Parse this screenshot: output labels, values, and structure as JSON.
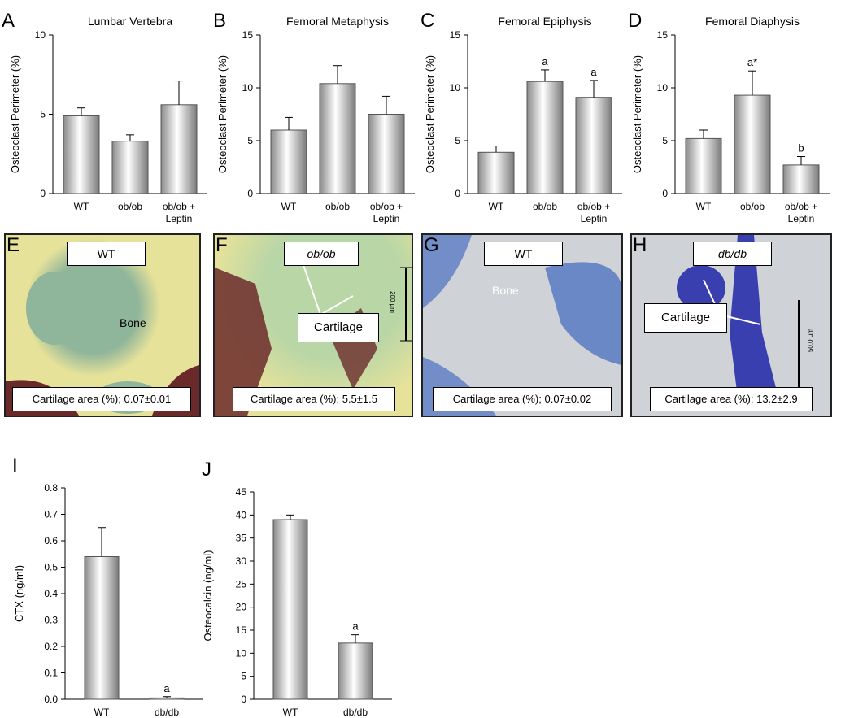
{
  "chart_data": [
    {
      "panel": "A",
      "type": "bar",
      "title": "Lumbar Vertebra",
      "ylabel": "Osteoclast Perimeter (%)",
      "ylim": [
        0,
        10
      ],
      "yticks": [
        0,
        5,
        10
      ],
      "categories": [
        "WT",
        "ob/ob",
        "ob/ob + Leptin"
      ],
      "values": [
        4.9,
        3.3,
        5.6
      ],
      "errors": [
        0.5,
        0.4,
        1.5
      ],
      "annotations": [
        "",
        "",
        ""
      ]
    },
    {
      "panel": "B",
      "type": "bar",
      "title": "Femoral Metaphysis",
      "ylabel": "Osteoclast Perimeter (%)",
      "ylim": [
        0,
        15
      ],
      "yticks": [
        0,
        5,
        10,
        15
      ],
      "categories": [
        "WT",
        "ob/ob",
        "ob/ob + Leptin"
      ],
      "values": [
        6.0,
        10.4,
        7.5
      ],
      "errors": [
        1.2,
        1.7,
        1.7
      ],
      "annotations": [
        "",
        "",
        ""
      ]
    },
    {
      "panel": "C",
      "type": "bar",
      "title": "Femoral Epiphysis",
      "ylabel": "Osteoclast Perimeter (%)",
      "ylim": [
        0,
        15
      ],
      "yticks": [
        0,
        5,
        10,
        15
      ],
      "categories": [
        "WT",
        "ob/ob",
        "ob/ob + Leptin"
      ],
      "values": [
        3.9,
        10.6,
        9.1
      ],
      "errors": [
        0.6,
        1.1,
        1.6
      ],
      "annotations": [
        "",
        "a",
        "a"
      ]
    },
    {
      "panel": "D",
      "type": "bar",
      "title": "Femoral Diaphysis",
      "ylabel": "Osteoclast Perimeter (%)",
      "ylim": [
        0,
        15
      ],
      "yticks": [
        0,
        5,
        10,
        15
      ],
      "categories": [
        "WT",
        "ob/ob",
        "ob/ob + Leptin"
      ],
      "values": [
        5.2,
        9.3,
        2.7
      ],
      "errors": [
        0.8,
        2.3,
        0.8
      ],
      "annotations": [
        "",
        "a*",
        "b"
      ]
    },
    {
      "panel": "I",
      "type": "bar",
      "title": "",
      "ylabel": "CTX (ng/ml)",
      "ylim": [
        0,
        0.8
      ],
      "yticks": [
        "0.0",
        "0.1",
        "0.2",
        "0.3",
        "0.4",
        "0.5",
        "0.6",
        "0.7",
        "0.8"
      ],
      "categories": [
        "WT",
        "db/db"
      ],
      "values": [
        0.54,
        0.005
      ],
      "errors": [
        0.11,
        0.005
      ],
      "annotations": [
        "",
        "a"
      ]
    },
    {
      "panel": "J",
      "type": "bar",
      "title": "",
      "ylabel": "Osteocalcin (ng/ml)",
      "ylim": [
        0,
        45
      ],
      "yticks": [
        0,
        5,
        10,
        15,
        20,
        25,
        30,
        35,
        40,
        45
      ],
      "categories": [
        "WT",
        "db/db"
      ],
      "values": [
        39.0,
        12.2
      ],
      "errors": [
        1.0,
        1.8
      ],
      "annotations": [
        "",
        "a"
      ]
    }
  ],
  "micrographs": [
    {
      "panel": "E",
      "tag": "WT",
      "caption": "Cartilage area (%); 0.07±0.01",
      "label": "Bone"
    },
    {
      "panel": "F",
      "tag": "ob/ob",
      "caption": "Cartilage area (%); 5.5±1.5",
      "label": "Cartilage",
      "scale": "200 µm"
    },
    {
      "panel": "G",
      "tag": "WT",
      "caption": "Cartilage area (%); 0.07±0.02",
      "label": "Bone"
    },
    {
      "panel": "H",
      "tag": "db/db",
      "caption": "Cartilage area (%); 13.2±2.9",
      "label": "Cartilage",
      "scale": "50.0 µm"
    }
  ],
  "colors": {
    "bar_edge": "#555555",
    "bar_light": "#ffffff",
    "bar_dark": "#8a8a8a",
    "stain_yellow": "#e6e29a",
    "stain_green": "#8fb59a",
    "stain_brown": "#6b2a2a",
    "toluidine_bg": "#cfd2d6",
    "toluidine_blue": "#3a3fb0"
  }
}
